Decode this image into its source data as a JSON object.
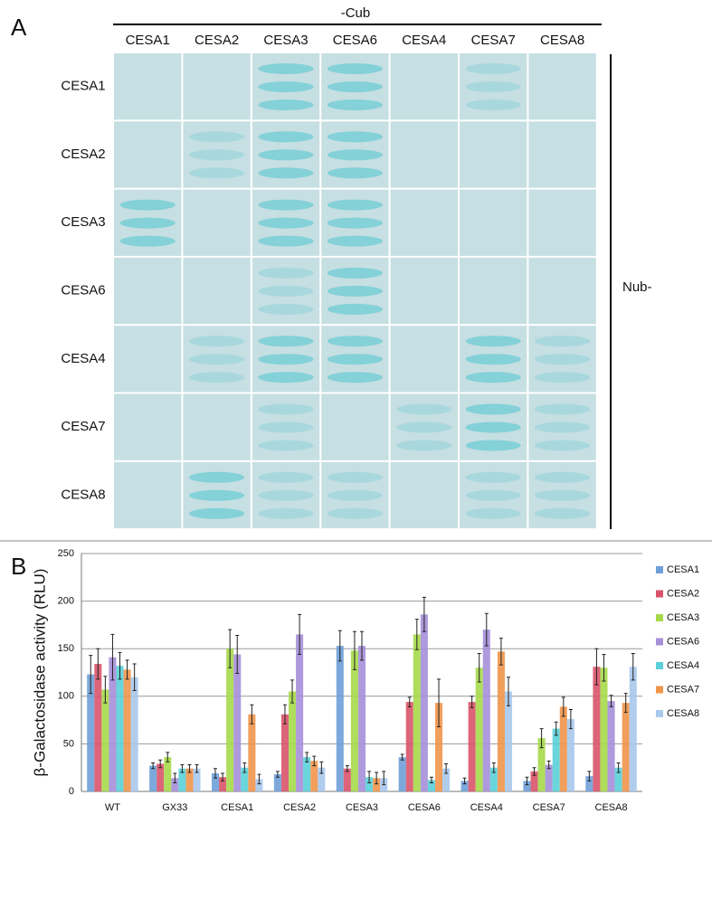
{
  "panel_a": {
    "label": "A",
    "column_group": "-Cub",
    "row_group": "Nub-",
    "columns": [
      "CESA1",
      "CESA2",
      "CESA3",
      "CESA6",
      "CESA4",
      "CESA7",
      "CESA8"
    ],
    "rows": [
      "CESA1",
      "CESA2",
      "CESA3",
      "CESA6",
      "CESA4",
      "CESA7",
      "CESA8"
    ]
  },
  "panel_b_label": "B",
  "chart_data": {
    "type": "bar",
    "y_label": "β-Galactosidase activity (RLU)",
    "categories": [
      "WT",
      "GX33",
      "CESA1",
      "CESA2",
      "CESA3",
      "CESA6",
      "CESA4",
      "CESA7",
      "CESA8"
    ],
    "series": [
      {
        "name": "CESA1",
        "color": "#6f9fd8",
        "values": [
          123,
          27,
          19,
          18,
          153,
          36,
          11,
          11,
          16
        ],
        "errors": [
          20,
          3,
          5,
          3,
          16,
          3,
          3,
          4,
          5
        ]
      },
      {
        "name": "CESA2",
        "color": "#d9546a",
        "values": [
          134,
          29,
          15,
          81,
          24,
          94,
          94,
          21,
          131
        ],
        "errors": [
          16,
          4,
          4,
          10,
          3,
          5,
          6,
          4,
          19
        ]
      },
      {
        "name": "CESA3",
        "color": "#a6d94a",
        "values": [
          107,
          36,
          150,
          105,
          148,
          165,
          130,
          56,
          130
        ],
        "errors": [
          14,
          5,
          20,
          12,
          20,
          16,
          15,
          10,
          14
        ]
      },
      {
        "name": "CESA6",
        "color": "#a58fd8",
        "values": [
          141,
          14,
          144,
          165,
          153,
          186,
          170,
          28,
          95
        ],
        "errors": [
          24,
          5,
          20,
          21,
          15,
          18,
          17,
          4,
          6
        ]
      },
      {
        "name": "CESA4",
        "color": "#5ad0d8",
        "values": [
          132,
          24,
          25,
          36,
          15,
          12,
          25,
          66,
          25
        ],
        "errors": [
          14,
          4,
          5,
          5,
          6,
          3,
          5,
          7,
          5
        ]
      },
      {
        "name": "CESA7",
        "color": "#f0954a",
        "values": [
          128,
          24,
          81,
          32,
          14,
          93,
          147,
          89,
          93
        ],
        "errors": [
          10,
          4,
          10,
          5,
          6,
          25,
          14,
          10,
          10
        ]
      },
      {
        "name": "CESA8",
        "color": "#a8c8ec",
        "values": [
          120,
          24,
          13,
          25,
          14,
          24,
          105,
          76,
          131
        ],
        "errors": [
          14,
          4,
          5,
          6,
          7,
          5,
          15,
          10,
          14
        ]
      }
    ],
    "ylim": [
      0,
      250
    ],
    "yticks": [
      0,
      50,
      100,
      150,
      200,
      250
    ],
    "grid": true
  }
}
